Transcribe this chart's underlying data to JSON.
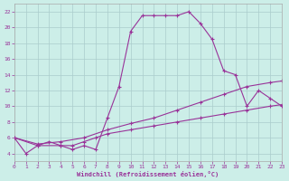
{
  "bg_color": "#cceee8",
  "line_color": "#993399",
  "grid_color": "#aacccc",
  "xlabel": "Windchill (Refroidissement éolien,°C)",
  "xlim": [
    0,
    23
  ],
  "ylim": [
    3,
    23
  ],
  "xticks": [
    0,
    1,
    2,
    3,
    4,
    5,
    6,
    7,
    8,
    9,
    10,
    11,
    12,
    13,
    14,
    15,
    16,
    17,
    18,
    19,
    20,
    21,
    22,
    23
  ],
  "yticks": [
    4,
    6,
    8,
    10,
    12,
    14,
    16,
    18,
    20,
    22
  ],
  "curve_x": [
    0,
    1,
    2,
    3,
    4,
    5,
    6,
    7,
    8,
    9,
    10,
    11,
    12,
    13,
    14,
    15,
    16,
    17,
    18,
    19,
    20,
    21,
    22,
    23
  ],
  "curve_y": [
    6,
    4,
    5,
    5.5,
    5,
    4.5,
    5.0,
    4.5,
    8.5,
    12.5,
    19.5,
    21.5,
    21.5,
    21.5,
    21.5,
    22.0,
    20.5,
    18.5,
    14.5,
    14.0,
    10.0,
    12.0,
    11.0,
    10.0
  ],
  "line2_x": [
    0,
    2,
    4,
    5,
    6,
    7,
    8,
    10,
    12,
    14,
    16,
    18,
    20,
    22,
    23
  ],
  "line2_y": [
    6,
    5,
    5,
    5,
    5.5,
    6,
    6.5,
    7,
    7.5,
    8,
    8.5,
    9,
    9.5,
    10,
    10.2
  ],
  "line3_x": [
    0,
    2,
    4,
    6,
    8,
    10,
    12,
    14,
    16,
    18,
    20,
    22,
    23
  ],
  "line3_y": [
    6,
    5.2,
    5.5,
    6,
    7,
    7.8,
    8.5,
    9.5,
    10.5,
    11.5,
    12.5,
    13,
    13.2
  ]
}
